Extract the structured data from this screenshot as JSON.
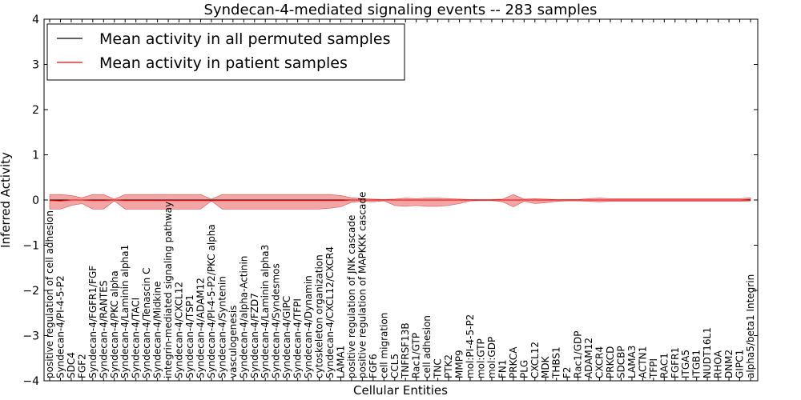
{
  "chart_data": {
    "type": "line",
    "title": "Syndecan-4-mediated signaling events -- 283 samples",
    "xlabel": "Cellular Entities",
    "ylabel": "Inferred Activity",
    "ylim": [
      -4,
      4
    ],
    "yticks": [
      -4,
      -3,
      -2,
      -1,
      0,
      1,
      2,
      3,
      4
    ],
    "ytick_labels": [
      "−4",
      "−3",
      "−2",
      "−1",
      "0",
      "1",
      "2",
      "3",
      "4"
    ],
    "grid": false,
    "legend_position": "top-left",
    "colors": {
      "permuted": "#000000",
      "patient": "#ff0000",
      "band": "#f08080"
    },
    "categories": [
      "positive regulation of cell adhesion",
      "Syndecan-4/PI-4-5-P2",
      "SDC4",
      "FGF2",
      "Syndecan-4/FGFR1/FGF",
      "Syndecan-4/RANTES",
      "Syndecan-4/PKC alpha",
      "Syndecan-4/Laminin alpha1",
      "Syndecan-4/TACI",
      "Syndecan-4/Tenascin C",
      "Syndecan-4/Midkine",
      "integrin-mediated signaling pathway",
      "Syndecan-4/CXCL12",
      "Syndecan-4/TSP1",
      "Syndecan-4/ADAM12",
      "Syndecan-4/PI-4-5-P2/PKC alpha",
      "Syndecan-4/Syntenin",
      "vasculogenesis",
      "Syndecan-4/alpha-Actinin",
      "Syndecan-4/FZD7",
      "Syndecan-4/Laminin alpha3",
      "Syndecan-4/Syndesmos",
      "Syndecan-4/GIPC",
      "Syndecan-4/TFPI",
      "Syndecan-4/Dynamin",
      "cytoskeleton organization",
      "Syndecan-4/CXCL12/CXCR4",
      "LAMA1",
      "positive regulation of JNK cascade",
      "positive regulation of MAPKKK cascade",
      "FGF6",
      "cell migration",
      "CCL5",
      "TNFRSF13B",
      "Rac1/GTP",
      "cell adhesion",
      "TNC",
      "PTK2",
      "MMP9",
      "mol:PI-4-5-P2",
      "mol:GTP",
      "mol:GDP",
      "FN1",
      "PRKCA",
      "PLG",
      "CXCL12",
      "MDK",
      "THBS1",
      "F2",
      "Rac1/GDP",
      "ADAM12",
      "CXCR4",
      "PRKCD",
      "SDCBP",
      "LAMA3",
      "ACTN1",
      "TFPI",
      "RAC1",
      "FGFR1",
      "ITGA5",
      "ITGB1",
      "NUDT16L1",
      "RHOA",
      "DNM2",
      "GIPC1",
      "alpha5/beta1 Integrin"
    ],
    "series": [
      {
        "name": "Mean activity in all permuted samples",
        "values": [
          0,
          0,
          0,
          0,
          0,
          0,
          0,
          0,
          0,
          0,
          0,
          0,
          0,
          0,
          0,
          0,
          0,
          0,
          0,
          0,
          0,
          0,
          0,
          0,
          0,
          0,
          0,
          0,
          0,
          0,
          0,
          0,
          0,
          0,
          0,
          0,
          0,
          0,
          0,
          0,
          0,
          0,
          0,
          0,
          0,
          0,
          0,
          0,
          0,
          0,
          0,
          0,
          0,
          0,
          0,
          0,
          0,
          0,
          0,
          0,
          0,
          0,
          0,
          0,
          0,
          0
        ]
      },
      {
        "name": "Mean activity in patient samples",
        "values": [
          -0.01,
          -0.02,
          0,
          0,
          -0.01,
          -0.01,
          0,
          -0.01,
          -0.01,
          -0.01,
          -0.01,
          -0.01,
          -0.01,
          -0.01,
          -0.01,
          -0.01,
          -0.01,
          -0.01,
          -0.01,
          -0.01,
          -0.01,
          -0.01,
          -0.01,
          -0.01,
          -0.01,
          -0.01,
          -0.01,
          -0.01,
          0,
          0,
          0,
          0,
          0,
          0,
          0,
          0,
          0,
          0,
          0,
          0,
          0,
          0,
          0,
          0,
          0,
          0,
          0,
          0,
          0,
          0,
          0,
          0,
          0,
          0,
          0,
          0,
          0,
          0,
          0,
          0,
          0,
          0,
          0,
          0,
          0,
          0.01
        ]
      }
    ],
    "band": {
      "upper": [
        0.12,
        0.12,
        0.1,
        0.05,
        0.12,
        0.12,
        0.02,
        0.12,
        0.12,
        0.12,
        0.12,
        0.12,
        0.12,
        0.12,
        0.12,
        0.02,
        0.12,
        0.12,
        0.12,
        0.12,
        0.12,
        0.12,
        0.12,
        0.12,
        0.12,
        0.12,
        0.12,
        0.1,
        0.05,
        0.03,
        0.02,
        0.01,
        0.02,
        0.04,
        0.03,
        0.04,
        0.04,
        0.03,
        0.02,
        0.01,
        0.01,
        0.01,
        0.02,
        0.12,
        0.02,
        0.03,
        0.02,
        0.01,
        0.01,
        0.01,
        0.03,
        0.04,
        0.03,
        0.03,
        0.03,
        0.03,
        0.03,
        0.03,
        0.03,
        0.03,
        0.03,
        0.03,
        0.03,
        0.03,
        0.03,
        0.05
      ],
      "lower": [
        -0.2,
        -0.2,
        -0.12,
        -0.08,
        -0.2,
        -0.2,
        -0.02,
        -0.2,
        -0.2,
        -0.2,
        -0.2,
        -0.2,
        -0.2,
        -0.2,
        -0.2,
        -0.02,
        -0.2,
        -0.2,
        -0.2,
        -0.2,
        -0.2,
        -0.2,
        -0.2,
        -0.2,
        -0.2,
        -0.2,
        -0.18,
        -0.15,
        -0.05,
        -0.03,
        -0.04,
        -0.02,
        -0.12,
        -0.14,
        -0.12,
        -0.14,
        -0.14,
        -0.12,
        -0.08,
        -0.02,
        -0.01,
        -0.01,
        -0.04,
        -0.15,
        -0.03,
        -0.08,
        -0.06,
        -0.03,
        -0.02,
        -0.02,
        -0.03,
        -0.04,
        -0.03,
        -0.03,
        -0.03,
        -0.03,
        -0.03,
        -0.03,
        -0.03,
        -0.03,
        -0.03,
        -0.03,
        -0.03,
        -0.03,
        -0.03,
        -0.02
      ]
    },
    "permuted_band": {
      "upper": [
        0.01,
        0.01,
        0.01,
        0.01,
        0.01,
        0.01,
        0.01,
        0.01,
        0.01,
        0.01,
        0.01,
        0.01,
        0.01,
        0.01,
        0.01,
        0.01,
        0.01,
        0.01,
        0.01,
        0.01,
        0.01,
        0.01,
        0.01,
        0.01,
        0.01,
        0.01,
        0.01,
        0.01,
        0.01,
        0.01,
        0.01,
        0.01,
        0.01,
        0.01,
        0.01,
        0.01,
        0.01,
        0.01,
        0.01,
        0.01,
        0.01,
        0.01,
        0.01,
        0.01,
        0.01,
        0.01,
        0.01,
        0.01,
        0.01,
        0.01,
        0.01,
        0.01,
        0.01,
        0.01,
        0.01,
        0.01,
        0.01,
        0.01,
        0.01,
        0.01,
        0.01,
        0.01,
        0.01,
        0.01,
        0.01,
        0.01
      ],
      "lower": [
        -0.03,
        -0.03,
        -0.03,
        -0.03,
        -0.03,
        -0.03,
        -0.03,
        -0.03,
        -0.03,
        -0.03,
        -0.03,
        -0.03,
        -0.03,
        -0.03,
        -0.03,
        -0.03,
        -0.03,
        -0.03,
        -0.03,
        -0.03,
        -0.03,
        -0.03,
        -0.03,
        -0.03,
        -0.03,
        -0.03,
        -0.03,
        -0.03,
        -0.03,
        -0.03,
        -0.03,
        -0.03,
        -0.03,
        -0.03,
        -0.03,
        -0.03,
        -0.03,
        -0.03,
        -0.03,
        -0.03,
        -0.03,
        -0.03,
        -0.03,
        -0.03,
        -0.03,
        -0.03,
        -0.03,
        -0.03,
        -0.03,
        -0.03,
        -0.03,
        -0.03,
        -0.03,
        -0.03,
        -0.03,
        -0.03,
        -0.03,
        -0.03,
        -0.03,
        -0.03,
        -0.03,
        -0.03,
        -0.03,
        -0.03,
        -0.03,
        -0.03
      ]
    }
  }
}
